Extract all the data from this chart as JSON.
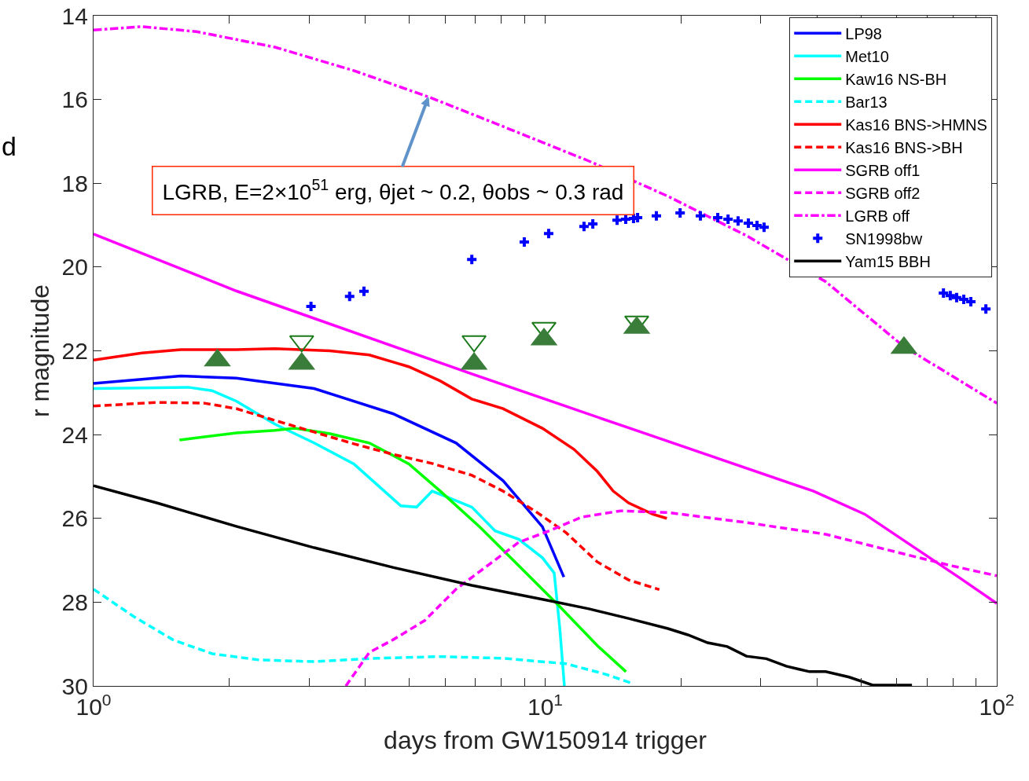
{
  "chart_data": {
    "type": "line",
    "xlabel": "days from GW150914 trigger",
    "ylabel": "r magnitude",
    "log": "x",
    "grid": false,
    "legend": "top right",
    "xlim": [
      1,
      100
    ],
    "xticks": [
      {
        "value": 1,
        "label": "10$^{0}$"
      },
      {
        "value": 2,
        "label": null
      },
      {
        "value": 3,
        "label": null
      },
      {
        "value": 4,
        "label": null
      },
      {
        "value": 5,
        "label": null
      },
      {
        "value": 6,
        "label": null
      },
      {
        "value": 7,
        "label": null
      },
      {
        "value": 8,
        "label": null
      },
      {
        "value": 9,
        "label": null
      },
      {
        "value": 10,
        "label": "10$^{1}$"
      },
      {
        "value": 20,
        "label": null
      },
      {
        "value": 30,
        "label": null
      },
      {
        "value": 40,
        "label": null
      },
      {
        "value": 50,
        "label": null
      },
      {
        "value": 60,
        "label": null
      },
      {
        "value": 70,
        "label": null
      },
      {
        "value": 80,
        "label": null
      },
      {
        "value": 90,
        "label": null
      },
      {
        "value": 100,
        "label": "10$^{2}$"
      }
    ],
    "ylim": [
      30,
      14
    ],
    "yticks": [
      14,
      16,
      18,
      20,
      22,
      24,
      26,
      28,
      30
    ],
    "annotations": [
      {
        "text": "LGRB, E=2×10$^{51}$ erg, θjet ~ 0.2, θobs ~ 0.3 rad",
        "x": 5.52,
        "y": 15.93
      },
      "d"
    ],
    "series": [
      {
        "name": "LP98",
        "color": "#0000ff",
        "line_style": "solid",
        "x": [
          1,
          1.56,
          2.07,
          3.08,
          4.6,
          6.35,
          8.07,
          9.86,
          11.0
        ],
        "values": [
          22.78,
          22.6,
          22.65,
          22.9,
          23.5,
          24.2,
          25.1,
          26.2,
          27.4
        ]
      },
      {
        "name": "Met10",
        "color": "#00ffff",
        "line_style": "solid",
        "x": [
          1,
          1.62,
          1.83,
          2.07,
          2.52,
          3.08,
          3.77,
          4.25,
          4.79,
          5.19,
          5.62,
          6.1,
          6.88,
          7.75,
          8.74,
          9.86,
          10.47,
          10.77,
          11.03
        ],
        "values": [
          22.9,
          22.87,
          22.95,
          23.2,
          23.75,
          24.2,
          24.7,
          25.2,
          25.7,
          25.73,
          25.35,
          25.5,
          25.73,
          26.3,
          26.5,
          26.94,
          27.3,
          28.6,
          30
        ]
      },
      {
        "name": "Kaw16 NS-BH",
        "color": "#00ff00",
        "line_style": "solid",
        "x": [
          1.55,
          2.07,
          2.52,
          2.79,
          3.34,
          4.08,
          4.99,
          5.86,
          7.16,
          8.74,
          10.69,
          13.05,
          15.1
        ],
        "values": [
          24.13,
          23.96,
          23.9,
          23.85,
          23.98,
          24.2,
          24.7,
          25.35,
          26.2,
          27.13,
          28.07,
          29.04,
          29.66
        ]
      },
      {
        "name": "Bar13",
        "color": "#00ffff",
        "line_style": "dashed",
        "x": [
          1,
          1.23,
          1.5,
          1.83,
          2.33,
          3.08,
          4.25,
          5.86,
          8.07,
          11.12,
          13.6,
          15.6
        ],
        "values": [
          27.69,
          28.35,
          28.9,
          29.23,
          29.38,
          29.42,
          29.34,
          29.3,
          29.34,
          29.47,
          29.72,
          29.94
        ]
      },
      {
        "name": "Kas16 BNS->HMNS",
        "color": "#ff0000",
        "line_style": "solid",
        "x": [
          1,
          1.28,
          1.56,
          2.07,
          2.52,
          3.34,
          4.08,
          4.99,
          5.86,
          6.88,
          8.07,
          9.86,
          11.58,
          13.05,
          14.15,
          15.3,
          17.3,
          18.6
        ],
        "values": [
          22.22,
          22.05,
          21.97,
          21.97,
          21.95,
          22.0,
          22.1,
          22.38,
          22.72,
          23.15,
          23.38,
          23.85,
          24.35,
          24.88,
          25.35,
          25.63,
          25.9,
          26.0
        ]
      },
      {
        "name": "Kas16 BNS->BH",
        "color": "#ff0000",
        "line_style": "dashed",
        "x": [
          1,
          1.38,
          1.76,
          2.07,
          2.52,
          3.08,
          3.77,
          4.6,
          5.62,
          6.88,
          8.07,
          9.48,
          11.12,
          13.05,
          15.3,
          17.9
        ],
        "values": [
          23.32,
          23.23,
          23.25,
          23.38,
          23.66,
          23.94,
          24.22,
          24.47,
          24.69,
          24.97,
          25.35,
          25.82,
          26.34,
          27.04,
          27.47,
          27.7
        ]
      },
      {
        "name": "SGRB off1",
        "color": "#ff00ff",
        "line_style": "solid",
        "x": [
          1,
          2.07,
          6.88,
          16.4,
          39.3,
          51.0,
          66.2,
          82.5,
          100
        ],
        "values": [
          19.21,
          20.57,
          22.55,
          23.95,
          25.35,
          25.9,
          26.72,
          27.41,
          28.03
        ]
      },
      {
        "name": "SGRB off2",
        "color": "#ff00ff",
        "line_style": "dashed",
        "x": [
          3.62,
          4.08,
          4.6,
          5.41,
          6.35,
          7.45,
          8.74,
          10.26,
          12.05,
          14.7,
          18.7,
          27.9,
          41.8,
          62.3,
          79.3,
          100
        ],
        "values": [
          30,
          29.2,
          28.9,
          28.44,
          27.69,
          27.13,
          26.57,
          26.29,
          25.97,
          25.82,
          25.86,
          26.1,
          26.38,
          26.85,
          27.13,
          27.37
        ]
      },
      {
        "name": "LGRB off",
        "color": "#ff00ff",
        "line_style": "dashdot",
        "x": [
          1,
          1.28,
          1.69,
          2.52,
          3.77,
          5.62,
          8.4,
          12.5,
          18.7,
          27.9,
          41.8,
          62.3,
          100
        ],
        "values": [
          14.34,
          14.26,
          14.38,
          14.75,
          15.31,
          15.97,
          16.72,
          17.47,
          18.31,
          19.25,
          20.35,
          21.9,
          23.25
        ]
      },
      {
        "name": "SN1998bw",
        "type": "scatter",
        "color": "#0000ff",
        "marker": "cross",
        "x": [
          3.03,
          3.69,
          3.97,
          6.88,
          8.99,
          10.18,
          12.19,
          12.75,
          14.43,
          15.08,
          15.69,
          16.02,
          17.63,
          19.9,
          22.07,
          24.11,
          25.41,
          26.74,
          28.18,
          29.45,
          30.53,
          76.2,
          78.9,
          81.5,
          84.5,
          87.6,
          94.6
        ],
        "values": [
          20.94,
          20.7,
          20.58,
          19.82,
          19.4,
          19.2,
          19.03,
          18.97,
          18.88,
          18.86,
          18.84,
          18.82,
          18.78,
          18.71,
          18.78,
          18.82,
          18.86,
          18.9,
          18.95,
          19.01,
          19.05,
          20.62,
          20.68,
          20.73,
          20.77,
          20.83,
          21.0
        ]
      },
      {
        "name": "Yam15 BBH",
        "color": "#000000",
        "line_style": "solid",
        "x": [
          1,
          1.38,
          2.07,
          3.08,
          4.6,
          6.88,
          10.26,
          12.5,
          15.3,
          18.7,
          20.7,
          22.9,
          25.3,
          27.9,
          30.9,
          34.2,
          38.5,
          41.8,
          47.1,
          53.1,
          64.9
        ],
        "values": [
          25.22,
          25.63,
          26.19,
          26.7,
          27.17,
          27.6,
          27.97,
          28.16,
          28.39,
          28.63,
          28.78,
          28.97,
          29.06,
          29.29,
          29.35,
          29.53,
          29.66,
          29.66,
          29.79,
          29.98,
          29.98
        ]
      },
      {
        "type": "scatter",
        "color": "#1a7a1a",
        "marker": "triangle-down",
        "x": [
          2.89,
          6.96,
          9.94,
          15.95
        ],
        "values": [
          21.77,
          21.77,
          21.45,
          21.3
        ]
      },
      {
        "type": "scatter",
        "color": "#3a7d3a",
        "marker": "triangle",
        "x": [
          1.88,
          2.89,
          6.96,
          9.94,
          15.95,
          62.3
        ],
        "values": [
          22.23,
          22.31,
          22.31,
          21.73,
          21.45,
          21.93
        ]
      }
    ]
  }
}
